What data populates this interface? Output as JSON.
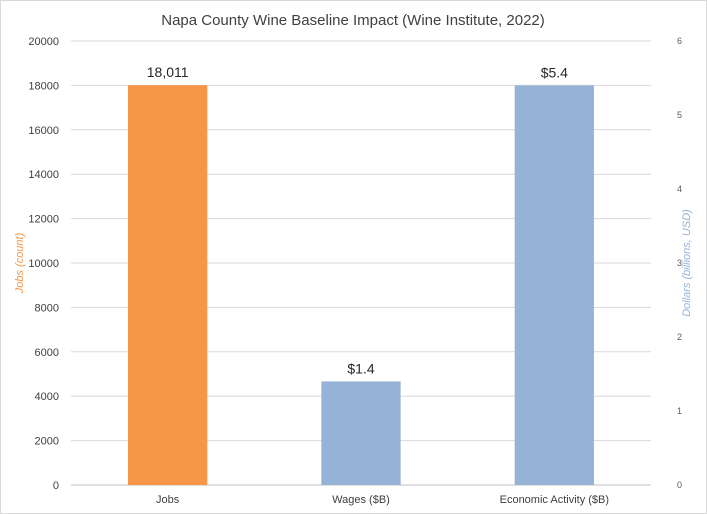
{
  "chart_data": {
    "type": "bar",
    "title": "Napa County Wine Baseline Impact (Wine Institute, 2022)",
    "categories": [
      "Jobs",
      "Wages ($B)",
      "Economic Activity ($B)"
    ],
    "series": [
      {
        "axis": "left",
        "color": "#F79646",
        "values": [
          18011,
          null,
          null
        ],
        "data_labels": [
          "18,011",
          "",
          ""
        ]
      },
      {
        "axis": "right",
        "color": "#95B3D7",
        "values": [
          null,
          1.4,
          5.4
        ],
        "data_labels": [
          "",
          "$1.4",
          "$5.4"
        ]
      }
    ],
    "y_left": {
      "label": "Jobs (count)",
      "color": "#F79646",
      "ylim": [
        0,
        20000
      ],
      "ticks": [
        "0",
        "2000",
        "4000",
        "6000",
        "8000",
        "10000",
        "12000",
        "14000",
        "16000",
        "18000",
        "20000"
      ]
    },
    "y_right": {
      "label": "Dollars (billions, USD)",
      "color": "#95B3D7",
      "ylim": [
        0,
        6
      ],
      "ticks": [
        "0",
        "1",
        "2",
        "3",
        "4",
        "5",
        "6"
      ]
    },
    "grid": true,
    "legend": "none"
  }
}
